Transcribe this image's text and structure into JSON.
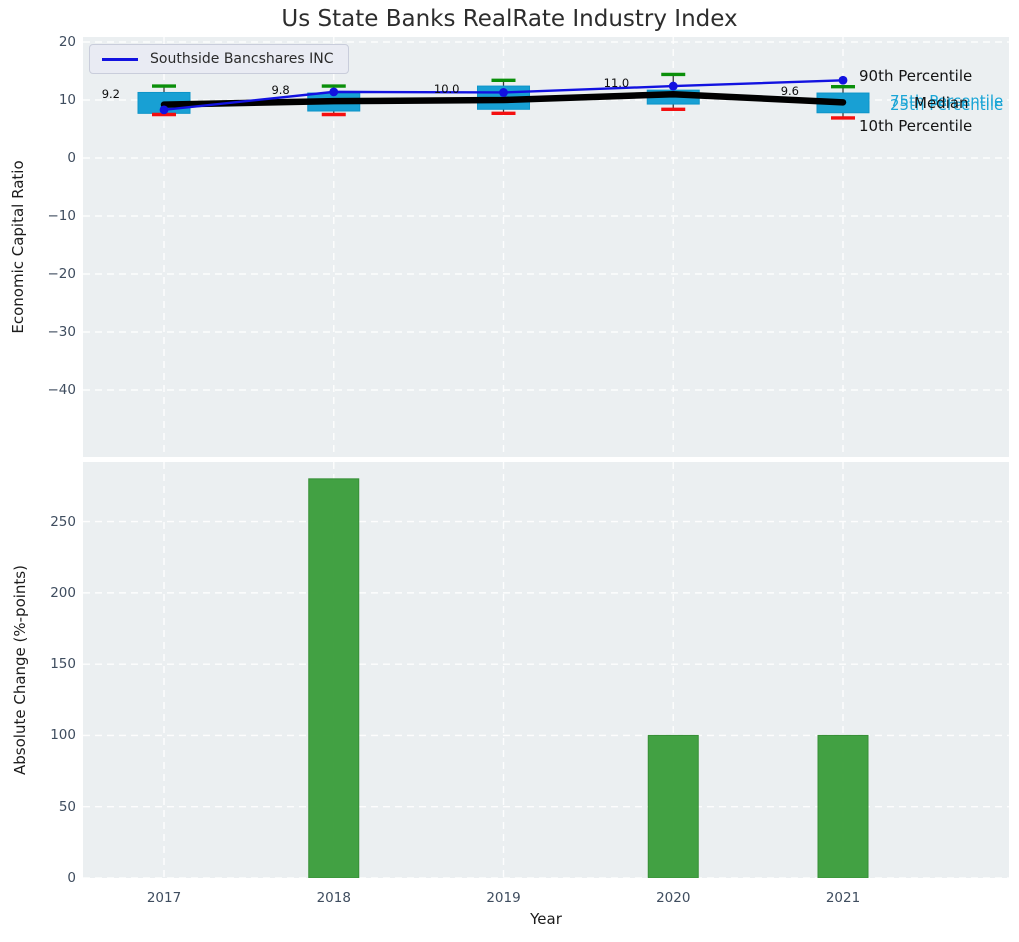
{
  "title": "Us State Banks RealRate Industry Index",
  "legend": {
    "series_label": "Southside Bancshares INC"
  },
  "percentile_labels": {
    "p90": "90th Percentile",
    "p75": "75th Percentile",
    "median": "Median",
    "p25": "25th Percentile",
    "p10": "10th Percentile"
  },
  "colors": {
    "box_fill": "#18a0d4",
    "box_edge": "#0d94c8",
    "median_line": "#000000",
    "company_line": "#1212e0",
    "whisker_line": "#3a3a3a",
    "whisker_top_cap": "#0a8f0a",
    "whisker_bottom_cap": "#f40f0f",
    "bar_fill": "#3a9d3a",
    "bar_edge": "#2d8a2d",
    "plot_background": "#ebeff1",
    "grid": "#ffffff",
    "tick_text": "#3f4d5f",
    "percentile_text_cyan": "#1aa5d6"
  },
  "chart_data": [
    {
      "type": "box+line",
      "ylabel": "Economic Capital Ratio",
      "x": [
        "2017",
        "2018",
        "2019",
        "2020",
        "2021"
      ],
      "yticks": [
        20,
        10,
        0,
        -10,
        -20,
        -30,
        -40
      ],
      "ylim": [
        -51.5,
        20.9
      ],
      "grid": true,
      "legend_position": "upper left",
      "series": [
        {
          "name": "Southside Bancshares INC",
          "type": "line",
          "values": [
            8.3,
            11.4,
            11.3,
            12.4,
            13.4
          ]
        },
        {
          "name": "Median",
          "type": "line",
          "values": [
            9.2,
            9.8,
            10.0,
            11.0,
            9.6
          ]
        }
      ],
      "box_stats": {
        "p90": [
          12.4,
          12.4,
          13.4,
          14.4,
          12.3
        ],
        "p75": [
          11.3,
          11.2,
          12.4,
          11.7,
          11.2
        ],
        "p25": [
          7.7,
          8.1,
          8.4,
          9.3,
          7.8
        ],
        "p10": [
          7.5,
          7.5,
          7.7,
          8.4,
          6.9
        ]
      },
      "annotations": [
        "9.2",
        "9.8",
        "10.0",
        "11.0",
        "9.6"
      ]
    },
    {
      "type": "bar",
      "ylabel": "Absolute Change (%-points)",
      "xlabel": "Year",
      "categories": [
        "2017",
        "2018",
        "2019",
        "2020",
        "2021"
      ],
      "values": [
        0,
        280,
        0,
        100,
        100
      ],
      "yticks": [
        0,
        50,
        100,
        150,
        200,
        250
      ],
      "ylim": [
        0,
        292
      ],
      "grid": true
    }
  ]
}
